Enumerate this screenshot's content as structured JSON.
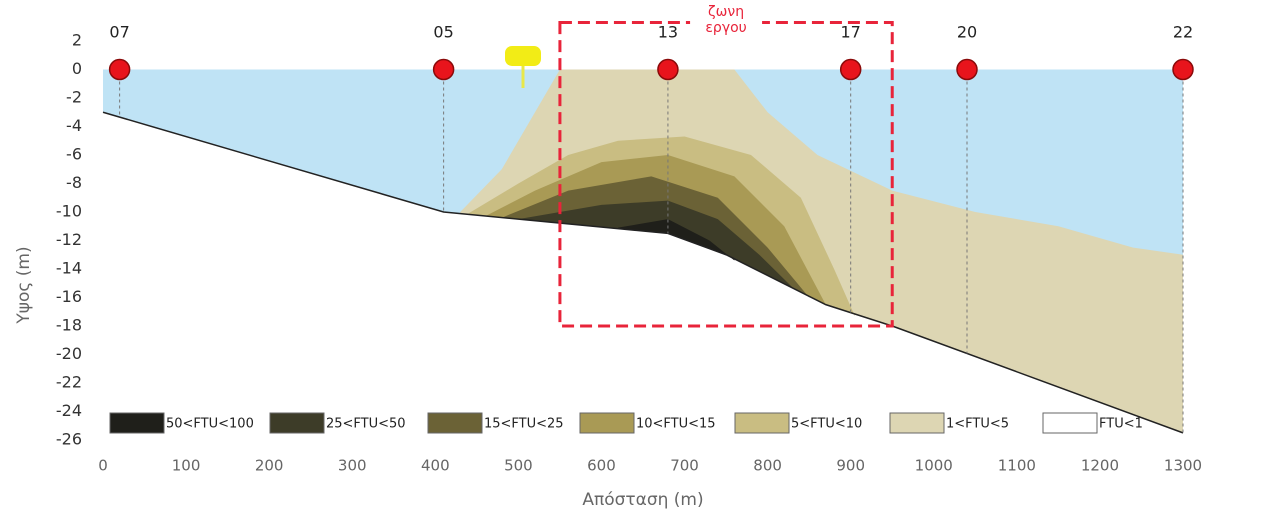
{
  "chart_data": {
    "type": "section",
    "x_label": "Απόσταση (m)",
    "y_label": "Υψος (m)",
    "xlim": [
      0,
      1300
    ],
    "ylim": [
      -26,
      2
    ],
    "xticks": [
      0,
      100,
      200,
      300,
      400,
      500,
      600,
      700,
      800,
      900,
      1000,
      1100,
      1200,
      1300
    ],
    "yticks": [
      2,
      0,
      -2,
      -4,
      -6,
      -8,
      -10,
      -12,
      -14,
      -16,
      -18,
      -20,
      -22,
      -24,
      -26
    ],
    "water_level": 0,
    "water_color": "#bfe3f5",
    "seabed": {
      "x": [
        0,
        410,
        500,
        680,
        750,
        870,
        950,
        1300
      ],
      "y": [
        -3,
        -10,
        -10.5,
        -11.5,
        -13,
        -16.5,
        -18,
        -25.5
      ]
    },
    "stations": {
      "names": [
        "07",
        "05",
        "13",
        "17",
        "20",
        "22"
      ],
      "x": [
        20,
        410,
        680,
        900,
        1040,
        1300
      ],
      "color": "#e8141c"
    },
    "zone": {
      "label_lines": [
        "ζωνη",
        "εργου"
      ],
      "x": [
        550,
        950
      ],
      "y": [
        3.3,
        -18
      ],
      "color": "#e8243a"
    },
    "layers": [
      {
        "name": "50<FTU<100",
        "color": "#1f1f1a",
        "x": [
          620,
          680,
          730,
          760
        ],
        "y": [
          -11.1,
          -10.5,
          -12,
          -13.4
        ]
      },
      {
        "name": "25<FTU<50",
        "color": "#3d3c28",
        "x": [
          500,
          600,
          680,
          740,
          790,
          830
        ],
        "y": [
          -10.5,
          -9.5,
          -9.2,
          -10.5,
          -13,
          -15.3
        ]
      },
      {
        "name": "15<FTU<25",
        "color": "#6b6236",
        "x": [
          480,
          560,
          660,
          740,
          800,
          850
        ],
        "y": [
          -10.4,
          -8.5,
          -7.5,
          -9,
          -12.5,
          -16
        ]
      },
      {
        "name": "10<FTU<15",
        "color": "#a99a55",
        "x": [
          460,
          520,
          600,
          680,
          760,
          820,
          870
        ],
        "y": [
          -10.3,
          -8.5,
          -6.5,
          -6,
          -7.5,
          -11,
          -16.5
        ]
      },
      {
        "name": "5<FTU<10",
        "color": "#c9bd82",
        "x": [
          440,
          500,
          560,
          620,
          700,
          780,
          840,
          880,
          905
        ],
        "y": [
          -10.1,
          -8,
          -6,
          -5,
          -4.7,
          -6,
          -9,
          -14,
          -17.3
        ]
      },
      {
        "name": "1<FTU<5",
        "color": "#ddd6b3",
        "x": [
          430,
          480,
          520,
          550,
          760,
          800,
          860,
          950,
          1050,
          1150,
          1240,
          1300
        ],
        "y": [
          -10,
          -7,
          -3,
          0,
          0,
          -3,
          -6,
          -8.5,
          -10,
          -11,
          -12.5,
          -13
        ]
      },
      {
        "name": "FTU<1",
        "color": "#ffffff"
      }
    ]
  }
}
